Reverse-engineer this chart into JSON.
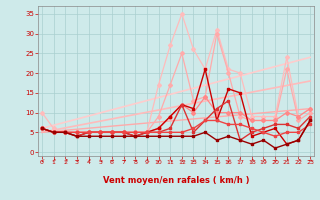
{
  "background_color": "#ceeaea",
  "grid_color": "#aacfcf",
  "xlabel": "Vent moyen/en rafales ( km/h )",
  "xlabel_color": "#cc0000",
  "tick_color": "#cc0000",
  "x_ticks": [
    0,
    1,
    2,
    3,
    4,
    5,
    6,
    7,
    8,
    9,
    10,
    11,
    12,
    13,
    14,
    15,
    16,
    17,
    18,
    19,
    20,
    21,
    22,
    23
  ],
  "ylim": [
    -1,
    37
  ],
  "y_ticks": [
    0,
    5,
    10,
    15,
    20,
    25,
    30,
    35
  ],
  "xlim": [
    -0.3,
    23.3
  ],
  "lines": [
    {
      "comment": "light pink - highest spiky line (rafales max)",
      "x": [
        0,
        1,
        2,
        3,
        4,
        5,
        6,
        7,
        8,
        9,
        10,
        11,
        12,
        13,
        14,
        15,
        16,
        17,
        18,
        19,
        20,
        21,
        22,
        23
      ],
      "y": [
        10,
        6,
        5,
        5,
        5,
        5,
        5,
        5,
        5,
        5,
        17,
        27,
        35,
        26,
        21,
        31,
        21,
        20,
        9,
        9,
        9,
        24,
        9,
        11
      ],
      "color": "#ffbbbb",
      "lw": 0.9,
      "marker": "D",
      "ms": 2.0
    },
    {
      "comment": "medium pink - mid spiky line",
      "x": [
        0,
        1,
        2,
        3,
        4,
        5,
        6,
        7,
        8,
        9,
        10,
        11,
        12,
        13,
        14,
        15,
        16,
        17,
        18,
        19,
        20,
        21,
        22,
        23
      ],
      "y": [
        6,
        5,
        5,
        5,
        5,
        5,
        5,
        5,
        5,
        5,
        9,
        17,
        25,
        13,
        14,
        30,
        20,
        9,
        8,
        8,
        8,
        21,
        8,
        10
      ],
      "color": "#ffaaaa",
      "lw": 0.9,
      "marker": "D",
      "ms": 2.0
    },
    {
      "comment": "diagonal line upper - light pink trend",
      "x": [
        0,
        23
      ],
      "y": [
        6,
        24
      ],
      "color": "#ffcccc",
      "lw": 1.2,
      "marker": null,
      "ms": 0
    },
    {
      "comment": "diagonal line middle",
      "x": [
        0,
        23
      ],
      "y": [
        5,
        18
      ],
      "color": "#ffbbbb",
      "lw": 1.2,
      "marker": null,
      "ms": 0
    },
    {
      "comment": "diagonal line lower",
      "x": [
        0,
        23
      ],
      "y": [
        5,
        11
      ],
      "color": "#ffaaaa",
      "lw": 1.0,
      "marker": null,
      "ms": 0
    },
    {
      "comment": "pink with markers - smoother line",
      "x": [
        0,
        1,
        2,
        3,
        4,
        5,
        6,
        7,
        8,
        9,
        10,
        11,
        12,
        13,
        14,
        15,
        16,
        17,
        18,
        19,
        20,
        21,
        22,
        23
      ],
      "y": [
        6,
        5,
        5,
        5,
        5,
        5,
        5,
        5,
        5,
        5,
        6,
        9,
        12,
        10,
        14,
        10,
        10,
        10,
        8,
        8,
        8,
        10,
        9,
        11
      ],
      "color": "#ff8888",
      "lw": 0.9,
      "marker": "D",
      "ms": 2.0
    },
    {
      "comment": "dark red spiky - main volatile line",
      "x": [
        0,
        1,
        2,
        3,
        4,
        5,
        6,
        7,
        8,
        9,
        10,
        11,
        12,
        13,
        14,
        15,
        16,
        17,
        18,
        19,
        20,
        21,
        22,
        23
      ],
      "y": [
        6,
        5,
        5,
        4,
        5,
        5,
        5,
        5,
        4,
        5,
        6,
        9,
        12,
        11,
        21,
        8,
        16,
        15,
        4,
        5,
        6,
        2,
        3,
        8
      ],
      "color": "#cc0000",
      "lw": 1.0,
      "marker": "s",
      "ms": 2.0
    },
    {
      "comment": "dark red moderate",
      "x": [
        0,
        1,
        2,
        3,
        4,
        5,
        6,
        7,
        8,
        9,
        10,
        11,
        12,
        13,
        14,
        15,
        16,
        17,
        18,
        19,
        20,
        21,
        22,
        23
      ],
      "y": [
        6,
        5,
        5,
        4,
        5,
        5,
        5,
        5,
        4,
        5,
        5,
        6,
        12,
        5,
        8,
        11,
        13,
        3,
        5,
        6,
        7,
        7,
        6,
        9
      ],
      "color": "#dd3333",
      "lw": 1.0,
      "marker": "s",
      "ms": 2.0
    },
    {
      "comment": "dark red flat-ish lower",
      "x": [
        0,
        1,
        2,
        3,
        4,
        5,
        6,
        7,
        8,
        9,
        10,
        11,
        12,
        13,
        14,
        15,
        16,
        17,
        18,
        19,
        20,
        21,
        22,
        23
      ],
      "y": [
        6,
        5,
        5,
        5,
        5,
        5,
        5,
        5,
        5,
        5,
        5,
        5,
        5,
        6,
        8,
        8,
        7,
        7,
        6,
        5,
        4,
        5,
        5,
        7
      ],
      "color": "#ee4444",
      "lw": 1.0,
      "marker": "s",
      "ms": 2.0
    },
    {
      "comment": "dark very bottom line going down then up",
      "x": [
        0,
        1,
        2,
        3,
        4,
        5,
        6,
        7,
        8,
        9,
        10,
        11,
        12,
        13,
        14,
        15,
        16,
        17,
        18,
        19,
        20,
        21,
        22,
        23
      ],
      "y": [
        6,
        5,
        5,
        4,
        4,
        4,
        4,
        4,
        4,
        4,
        4,
        4,
        4,
        4,
        5,
        3,
        4,
        3,
        2,
        3,
        1,
        2,
        3,
        8
      ],
      "color": "#990000",
      "lw": 1.0,
      "marker": "s",
      "ms": 2.0
    }
  ],
  "arrow_row": [
    "↙",
    "↗",
    "↗",
    "→",
    "↗",
    "↘",
    "→",
    "→",
    "→",
    "↖",
    "↙",
    "↘",
    "↘",
    "↙",
    "↓",
    "↓",
    "↙",
    "↑",
    "↗",
    "↗",
    "→",
    "↗",
    "↗",
    "→"
  ]
}
